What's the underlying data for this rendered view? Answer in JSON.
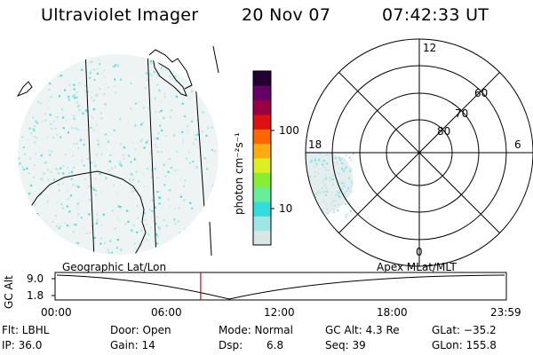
{
  "header": {
    "title": "Ultraviolet Imager",
    "date": "20 Nov 07",
    "time": "07:42:33 UT"
  },
  "colorbar": {
    "label": "photon cm⁻²s⁻¹",
    "ticks": [
      "100",
      "10"
    ],
    "colors": [
      "#d9e6e6",
      "#9ee5e5",
      "#33dddd",
      "#66ee99",
      "#88ee33",
      "#ddee22",
      "#ffaa11",
      "#ff6600",
      "#dd1111",
      "#990044",
      "#660066",
      "#220033"
    ]
  },
  "geo_panel": {
    "label": "Geographic Lat/Lon"
  },
  "apex_panel": {
    "label": "Apex MLat/MLT",
    "mlt_labels": [
      "12",
      "18",
      "6",
      "0"
    ],
    "lat_labels": [
      "60",
      "70",
      "80"
    ]
  },
  "timeline": {
    "axis_label": "GC Alt",
    "y_ticks": [
      "9.0",
      "1.8"
    ],
    "x_ticks": [
      "00:00",
      "06:00",
      "12:00",
      "18:00",
      "23:59"
    ],
    "current_time_fraction": 0.3227
  },
  "info": {
    "flt": "Flt: LBHL",
    "ip": "IP: 36.0",
    "door": "Door: Open",
    "gain": "Gain: 14",
    "mode": "Mode: Normal",
    "dsp_label": "Dsp:",
    "dsp_value": "6.8",
    "gc_alt": "GC Alt: 4.3 Re",
    "seq": "Seq: 39",
    "glat": "GLat: −35.2",
    "glon": "GLon: 155.8"
  }
}
